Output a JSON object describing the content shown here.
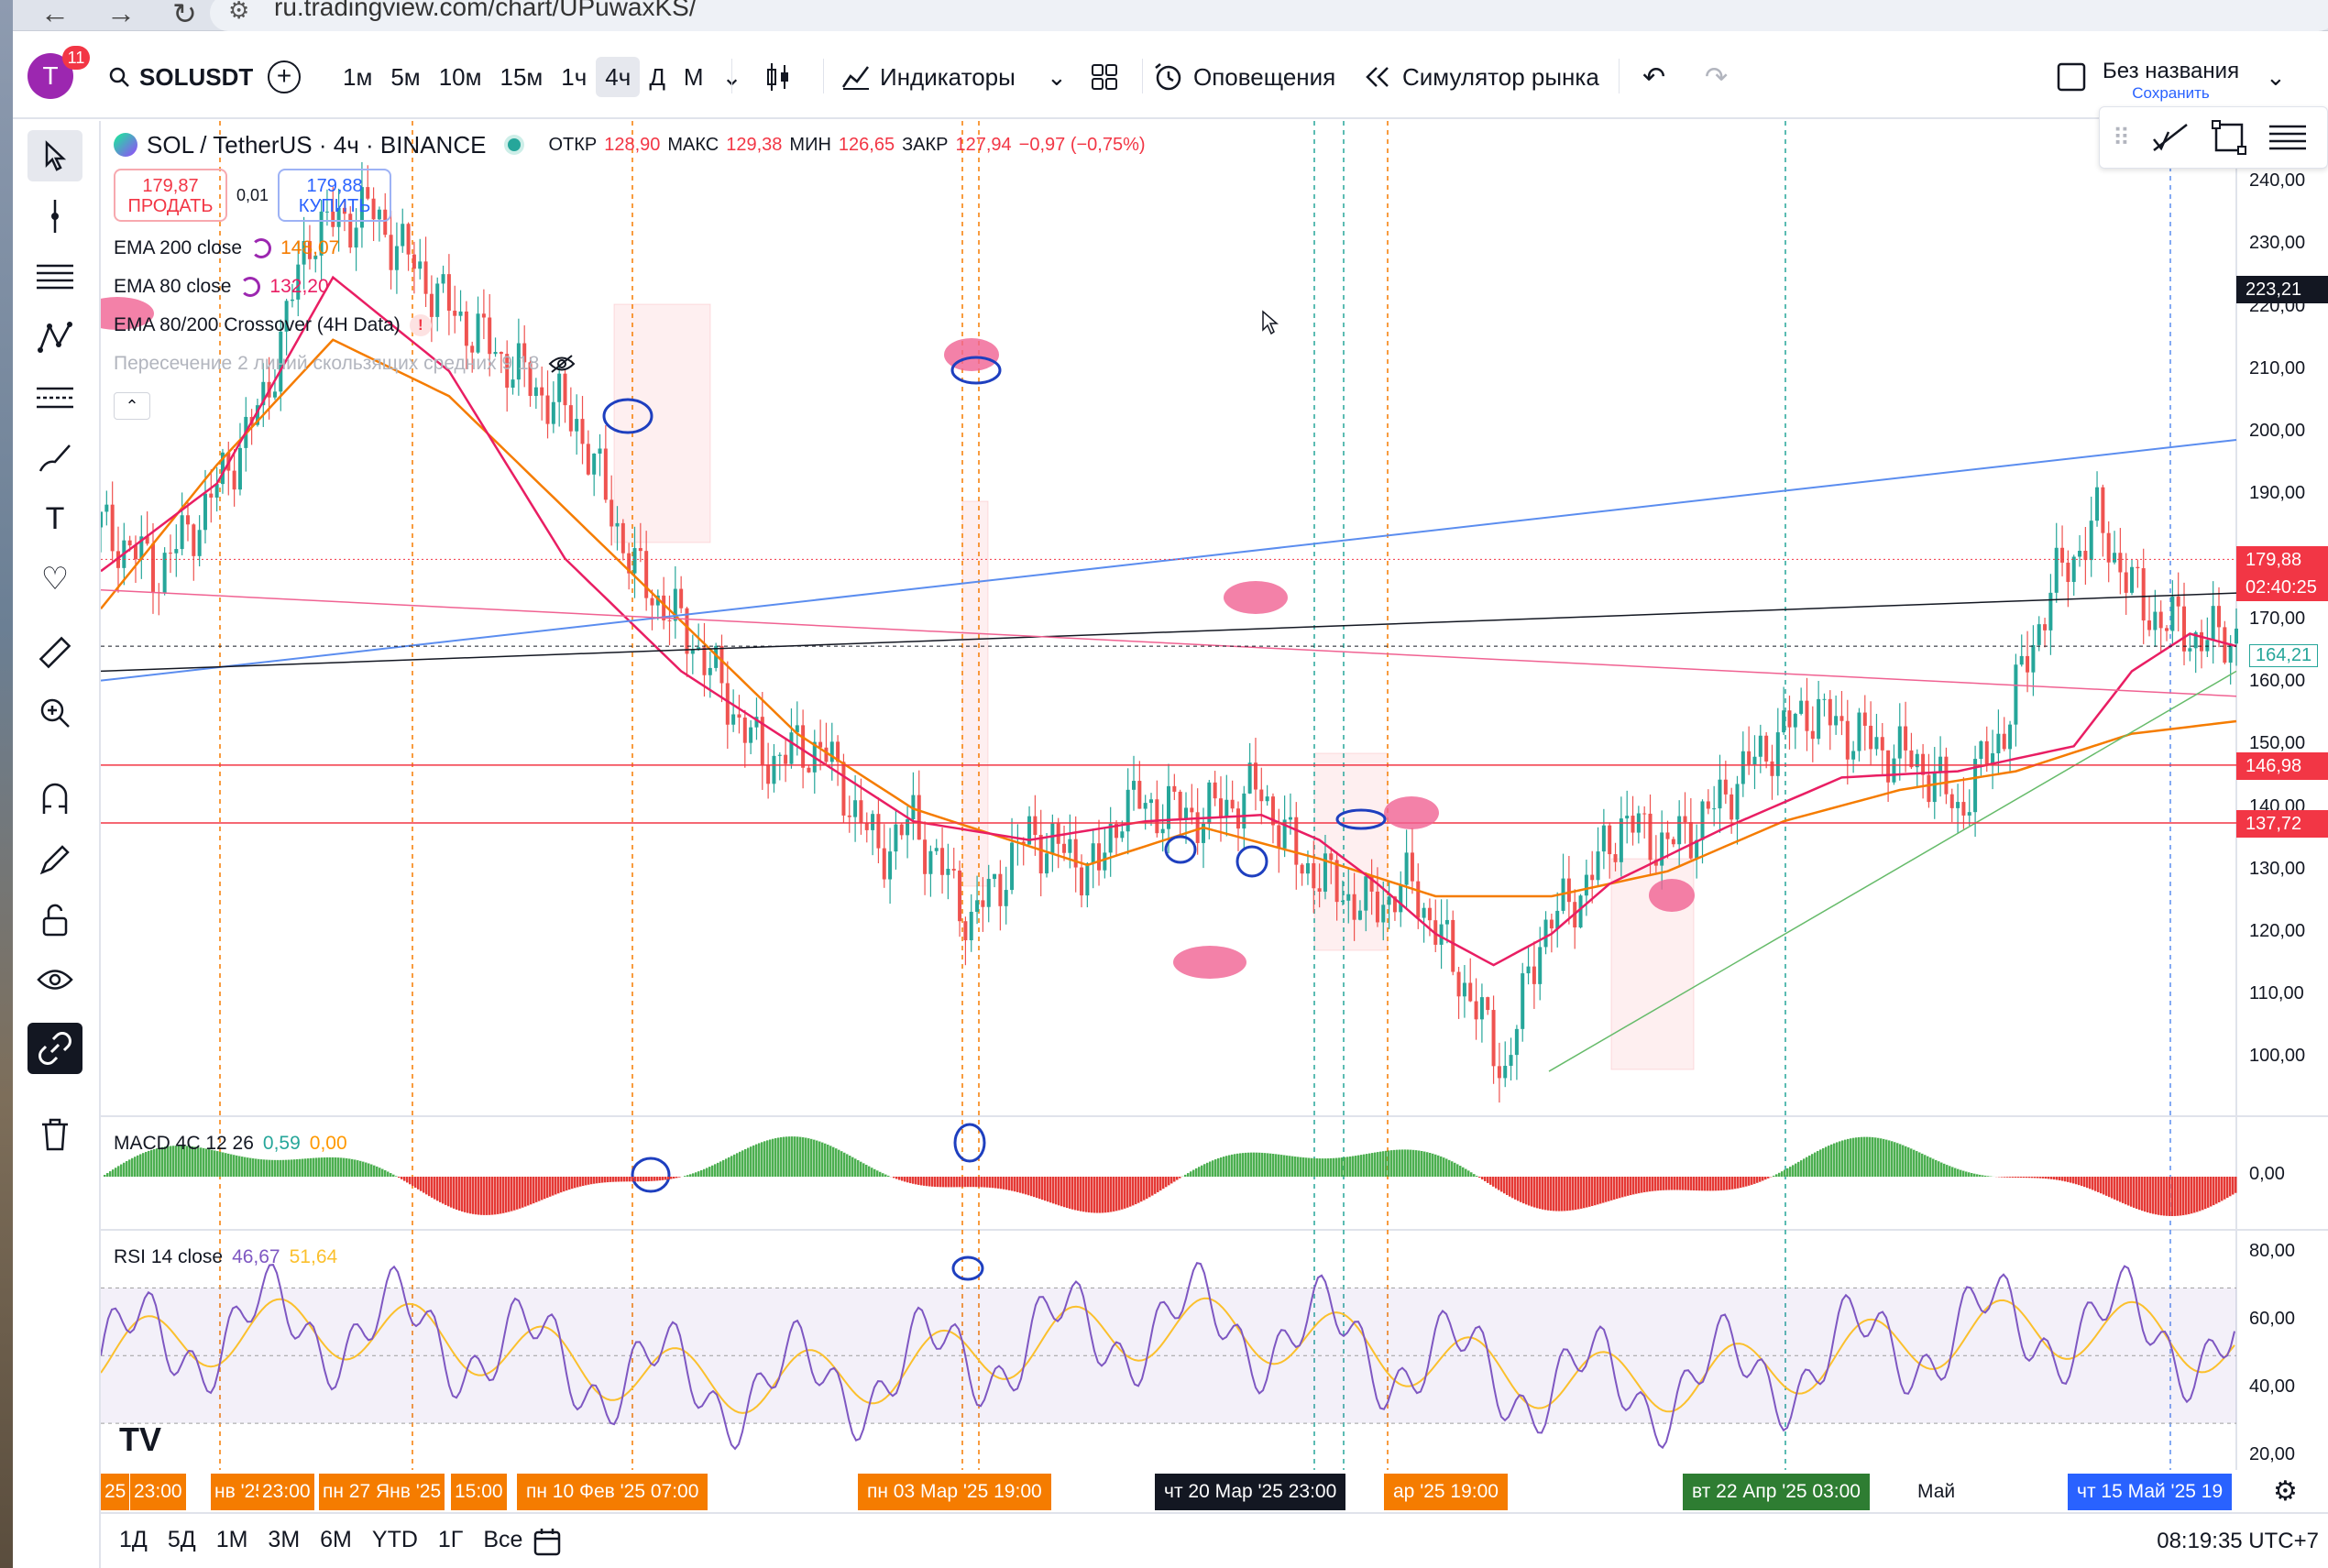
{
  "browser": {
    "url": "ru.tradingview.com/chart/UPuwaxKS/",
    "back": "←",
    "forward": "→",
    "reload": "↻"
  },
  "toolbar": {
    "avatar_letter": "T",
    "avatar_badge": "11",
    "symbol": "SOLUSDT",
    "add_symbol": "+",
    "intervals": [
      "1м",
      "5м",
      "10м",
      "15м",
      "1ч",
      "4ч",
      "Д",
      "М"
    ],
    "active_interval": "4ч",
    "interval_more": "⌄",
    "indicators_label": "Индикаторы",
    "alerts_label": "Оповещения",
    "replay_label": "Симулятор рынка",
    "undo": "↶",
    "redo": "↷",
    "layout_name": "Без названия",
    "layout_save": "Сохранить",
    "chevron": "⌄"
  },
  "legend": {
    "title": "SOL / TetherUS · 4ч · BINANCE",
    "open_label": "ОТКР",
    "open": "128,90",
    "high_label": "МАКС",
    "high": "129,38",
    "low_label": "МИН",
    "low": "126,65",
    "close_label": "ЗАКР",
    "close": "127,94",
    "change": "−0,97 (−0,75%)",
    "sell_price": "179,87",
    "sell_label": "ПРОДАТЬ",
    "spread": "0,01",
    "buy_price": "179,88",
    "buy_label": "КУПИТЬ",
    "indicators": [
      {
        "name": "EMA 200 close",
        "value": "148,07",
        "color": "#f57c00"
      },
      {
        "name": "EMA 80 close",
        "value": "132,20",
        "color": "#e91e63"
      },
      {
        "name": "EMA 80/200 Crossover (4H Data)",
        "value": "!",
        "color": "#f23645"
      },
      {
        "name": "Пересечение 2 линий скользящих средних 9 18",
        "value": "",
        "color": "#b2b5be"
      }
    ],
    "collapse": "⌃"
  },
  "macd": {
    "label": "MACD 4C 12 26",
    "value1": "0,59",
    "value2": "0,00"
  },
  "rsi": {
    "label": "RSI 14 close",
    "value1": "46,67",
    "value2": "51,64"
  },
  "price_axis": {
    "ticks": [
      "240,00",
      "230,00",
      "220,00",
      "210,00",
      "200,00",
      "190,00",
      "180,00",
      "170,00",
      "160,00",
      "150,00",
      "140,00",
      "130,00",
      "120,00",
      "110,00",
      "100,00"
    ],
    "cursor_price": "223,21",
    "current_price": "179,88",
    "countdown": "02:40:25",
    "ema80_price": "164,21",
    "line_146": "146,98",
    "line_137": "137,72",
    "macd_tick": "0,00",
    "rsi_ticks": [
      "80,00",
      "60,00",
      "40,00",
      "20,00"
    ]
  },
  "time_axis": {
    "labels": [
      {
        "text": "25",
        "style": "plain-orange"
      },
      {
        "text": "23:00",
        "style": "plain-orange"
      },
      {
        "text": "нв '25",
        "style": "plain-orange"
      },
      {
        "text": "23:00",
        "style": "plain-orange"
      },
      {
        "text": "пн 27 Янв '25",
        "style": "plain-orange"
      },
      {
        "text": "15:00",
        "style": "plain-orange"
      },
      {
        "text": "пн 10 Фев '25   07:00",
        "style": "orange"
      },
      {
        "text": "пн 03 Мар '25   19:00",
        "style": "orange"
      },
      {
        "text": "чт 20 Мар '25   23:00",
        "style": "dark"
      },
      {
        "text": "ар '25   19:00",
        "style": "orange"
      },
      {
        "text": "вт 22 Апр '25   03:00",
        "style": "green"
      },
      {
        "text": "Май",
        "style": "plain"
      },
      {
        "text": "чт 15 Май '25   19",
        "style": "blue"
      }
    ]
  },
  "bottom": {
    "periods": [
      "1Д",
      "5Д",
      "1М",
      "3М",
      "6М",
      "YTD",
      "1Г",
      "Все"
    ],
    "clock": "08:19:35 UTC+7",
    "logo": "TV"
  },
  "colors": {
    "ema200": "#f57c00",
    "ema80": "#e91e63",
    "up": "#26a69a",
    "down": "#ef5350",
    "blue_line": "#5b8def",
    "macd_pos": "#4caf50",
    "macd_neg": "#e53935",
    "rsi": "#7e57c2",
    "rsi_ma": "#fbc02d"
  },
  "chart_data": {
    "type": "candlestick",
    "symbol": "SOL / TetherUS",
    "interval": "4ч",
    "exchange": "BINANCE",
    "price_range": [
      92,
      250
    ],
    "price_path": [
      [
        0,
        185
      ],
      [
        5,
        178
      ],
      [
        9,
        188
      ],
      [
        14,
        205
      ],
      [
        18,
        232
      ],
      [
        23,
        236
      ],
      [
        30,
        220
      ],
      [
        37,
        208
      ],
      [
        41,
        202
      ],
      [
        46,
        178
      ],
      [
        51,
        167
      ],
      [
        57,
        148
      ],
      [
        62,
        150
      ],
      [
        67,
        133
      ],
      [
        70,
        138
      ],
      [
        75,
        122
      ],
      [
        80,
        136
      ],
      [
        84,
        132
      ],
      [
        86,
        130
      ],
      [
        88,
        141
      ],
      [
        95,
        139
      ],
      [
        100,
        143
      ],
      [
        103,
        132
      ],
      [
        109,
        124
      ],
      [
        113,
        128
      ],
      [
        118,
        110
      ],
      [
        121,
        98
      ],
      [
        124,
        120
      ],
      [
        128,
        128
      ],
      [
        131,
        138
      ],
      [
        135,
        134
      ],
      [
        139,
        140
      ],
      [
        141,
        145
      ],
      [
        147,
        156
      ],
      [
        153,
        150
      ],
      [
        157,
        147
      ],
      [
        160,
        140
      ],
      [
        164,
        153
      ],
      [
        168,
        175
      ],
      [
        172,
        186
      ],
      [
        176,
        172
      ],
      [
        181,
        167
      ],
      [
        184,
        168
      ]
    ],
    "ema200": [
      [
        0,
        172
      ],
      [
        10,
        195
      ],
      [
        20,
        215
      ],
      [
        30,
        206
      ],
      [
        40,
        188
      ],
      [
        50,
        170
      ],
      [
        60,
        152
      ],
      [
        70,
        140
      ],
      [
        80,
        134
      ],
      [
        85,
        131
      ],
      [
        95,
        137
      ],
      [
        105,
        132
      ],
      [
        115,
        126
      ],
      [
        125,
        126
      ],
      [
        135,
        130
      ],
      [
        145,
        138
      ],
      [
        155,
        143
      ],
      [
        165,
        146
      ],
      [
        175,
        152
      ],
      [
        184,
        154
      ]
    ],
    "ema80": [
      [
        0,
        178
      ],
      [
        10,
        192
      ],
      [
        20,
        225
      ],
      [
        30,
        210
      ],
      [
        40,
        180
      ],
      [
        50,
        162
      ],
      [
        60,
        150
      ],
      [
        70,
        138
      ],
      [
        80,
        135
      ],
      [
        90,
        138
      ],
      [
        100,
        139
      ],
      [
        105,
        135
      ],
      [
        110,
        128
      ],
      [
        115,
        120
      ],
      [
        120,
        115
      ],
      [
        125,
        120
      ],
      [
        130,
        128
      ],
      [
        140,
        137
      ],
      [
        150,
        145
      ],
      [
        160,
        146
      ],
      [
        170,
        150
      ],
      [
        175,
        162
      ],
      [
        180,
        168
      ],
      [
        184,
        166
      ]
    ],
    "horizontal_levels": [
      146.98,
      137.72
    ],
    "current_price": 179.88,
    "macd": {
      "name": "MACD 4C 12 26",
      "value": 0.59,
      "signal": 0.0
    },
    "rsi": {
      "name": "RSI 14 close",
      "value": 46.67,
      "ma": 51.64,
      "levels": [
        70,
        50,
        30
      ],
      "range": [
        20,
        85
      ]
    }
  }
}
